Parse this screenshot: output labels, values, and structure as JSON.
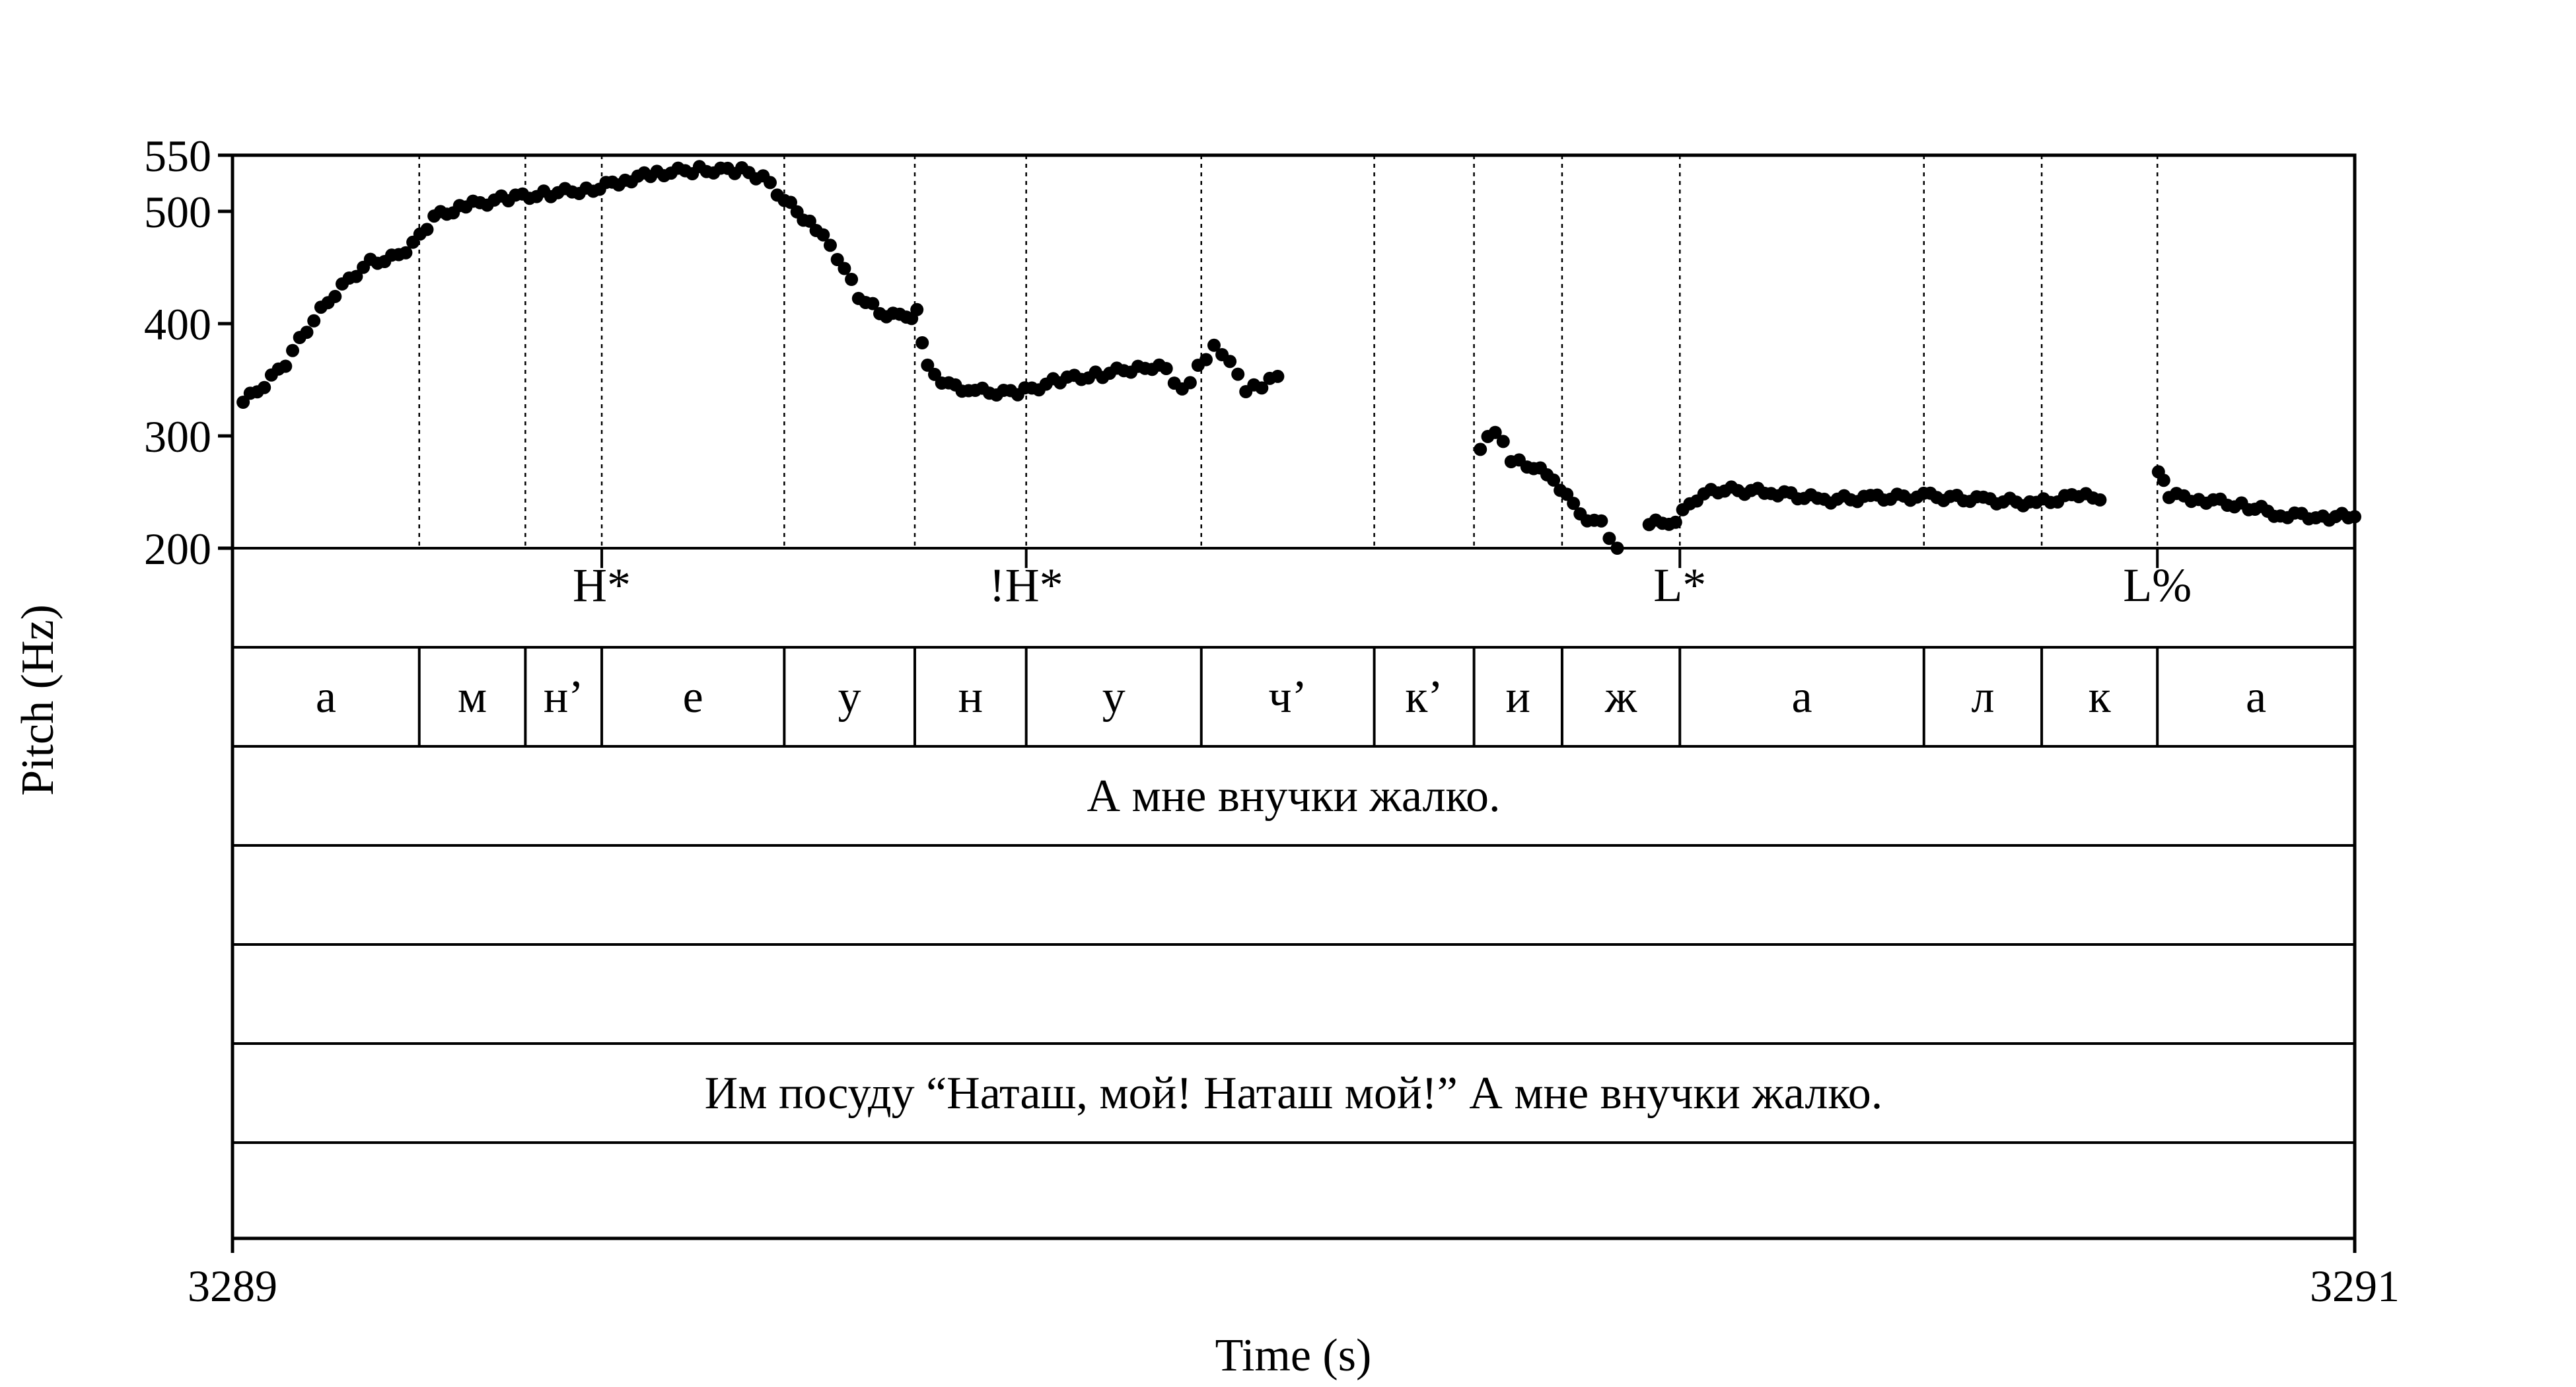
{
  "chart_data": {
    "type": "scatter",
    "xlabel": "Time (s)",
    "ylabel": "Pitch (Hz)",
    "xlim": [
      3289,
      3291
    ],
    "ylim": [
      200,
      550
    ],
    "x_ticks": [
      "3289",
      "3291"
    ],
    "y_ticks": [
      {
        "value": 550,
        "label": "550"
      },
      {
        "value": 500,
        "label": "500"
      },
      {
        "value": 400,
        "label": "400"
      },
      {
        "value": 300,
        "label": "300"
      },
      {
        "value": 200,
        "label": "200"
      }
    ],
    "boundaries": [
      3289.176,
      3289.276,
      3289.348,
      3289.52,
      3289.643,
      3289.748,
      3289.913,
      3290.076,
      3290.17,
      3290.253,
      3290.364,
      3290.594,
      3290.705,
      3290.814
    ],
    "tone_tier": [
      {
        "label": "H*",
        "time": 3289.348
      },
      {
        "label": "!H*",
        "time": 3289.748
      },
      {
        "label": "L*",
        "time": 3290.364
      },
      {
        "label": "L%",
        "time": 3290.814
      }
    ],
    "segment_tier": [
      {
        "label": "а",
        "start": 3289.0,
        "end": 3289.176
      },
      {
        "label": "м",
        "start": 3289.176,
        "end": 3289.276
      },
      {
        "label": "н’",
        "start": 3289.276,
        "end": 3289.348
      },
      {
        "label": "е",
        "start": 3289.348,
        "end": 3289.52
      },
      {
        "label": "у",
        "start": 3289.52,
        "end": 3289.643
      },
      {
        "label": "н",
        "start": 3289.643,
        "end": 3289.748
      },
      {
        "label": "у",
        "start": 3289.748,
        "end": 3289.913
      },
      {
        "label": "ч’",
        "start": 3289.913,
        "end": 3290.076
      },
      {
        "label": "к’",
        "start": 3290.076,
        "end": 3290.17
      },
      {
        "label": "и",
        "start": 3290.17,
        "end": 3290.253
      },
      {
        "label": "ж",
        "start": 3290.253,
        "end": 3290.364
      },
      {
        "label": "а",
        "start": 3290.364,
        "end": 3290.594
      },
      {
        "label": "л",
        "start": 3290.594,
        "end": 3290.705
      },
      {
        "label": "к",
        "start": 3290.705,
        "end": 3290.814
      },
      {
        "label": "а",
        "start": 3290.814,
        "end": 3291.0
      }
    ],
    "phrase_tier": "А мне внучки жалко.",
    "utterance_tier": "Им посуду “Наташ, мой! Наташ мой!” А мне внучки жалко.",
    "pitch_anchors": [
      [
        3289.01,
        330
      ],
      [
        3289.03,
        345
      ],
      [
        3289.05,
        365
      ],
      [
        3289.07,
        395
      ],
      [
        3289.09,
        420
      ],
      [
        3289.11,
        440
      ],
      [
        3289.13,
        455
      ],
      [
        3289.15,
        458
      ],
      [
        3289.17,
        470
      ],
      [
        3289.19,
        495
      ],
      [
        3289.22,
        505
      ],
      [
        3289.26,
        512
      ],
      [
        3289.3,
        516
      ],
      [
        3289.34,
        520
      ],
      [
        3289.37,
        528
      ],
      [
        3289.4,
        534
      ],
      [
        3289.44,
        537
      ],
      [
        3289.48,
        536
      ],
      [
        3289.5,
        530
      ],
      [
        3289.52,
        510
      ],
      [
        3289.55,
        485
      ],
      [
        3289.57,
        460
      ],
      [
        3289.59,
        425
      ],
      [
        3289.61,
        410
      ],
      [
        3289.635,
        405
      ],
      [
        3289.645,
        410
      ],
      [
        3289.655,
        360
      ],
      [
        3289.675,
        345
      ],
      [
        3289.7,
        340
      ],
      [
        3289.74,
        338
      ],
      [
        3289.78,
        350
      ],
      [
        3289.82,
        355
      ],
      [
        3289.86,
        362
      ],
      [
        3289.88,
        360
      ],
      [
        3289.895,
        340
      ],
      [
        3289.91,
        360
      ],
      [
        3289.925,
        378
      ],
      [
        3289.94,
        365
      ],
      [
        3289.955,
        340
      ],
      [
        3289.97,
        345
      ],
      [
        3289.985,
        353
      ]
    ],
    "pitch_segment2": [
      [
        3290.176,
        288
      ],
      [
        3290.19,
        305
      ],
      [
        3290.205,
        280
      ],
      [
        3290.22,
        275
      ],
      [
        3290.245,
        262
      ],
      [
        3290.27,
        230
      ],
      [
        3290.29,
        222
      ],
      [
        3290.305,
        200
      ]
    ],
    "pitch_segment3": [
      [
        3290.335,
        221
      ],
      [
        3290.36,
        225
      ],
      [
        3290.38,
        245
      ],
      [
        3290.4,
        252
      ],
      [
        3290.45,
        250
      ],
      [
        3290.5,
        243
      ],
      [
        3290.55,
        245
      ],
      [
        3290.6,
        246
      ],
      [
        3290.65,
        243
      ],
      [
        3290.7,
        240
      ],
      [
        3290.74,
        247
      ],
      [
        3290.76,
        243
      ]
    ],
    "pitch_segment4": [
      [
        3290.815,
        268
      ],
      [
        3290.825,
        247
      ],
      [
        3290.86,
        243
      ],
      [
        3290.9,
        237
      ],
      [
        3290.93,
        230
      ],
      [
        3290.97,
        228
      ],
      [
        3291.0,
        228
      ]
    ]
  }
}
